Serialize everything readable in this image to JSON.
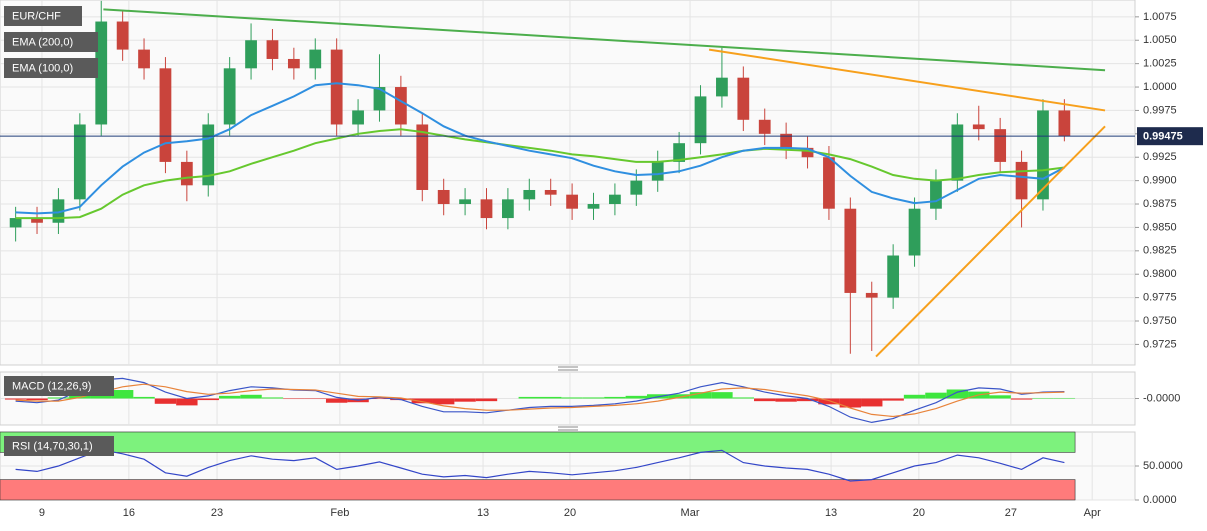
{
  "chart_data": [
    {
      "type": "candlestick",
      "name": "EUR/CHF",
      "up_color": "#2f9e5b",
      "down_color": "#c9443c",
      "open": [
        0.985,
        0.986,
        0.9855,
        0.988,
        0.996,
        1.007,
        1.004,
        1.002,
        0.992,
        0.9895,
        0.996,
        1.002,
        1.005,
        1.003,
        1.002,
        1.004,
        0.996,
        0.9975,
        1.0,
        0.996,
        0.989,
        0.9875,
        0.988,
        0.986,
        0.988,
        0.989,
        0.9885,
        0.987,
        0.9875,
        0.9885,
        0.99,
        0.992,
        0.994,
        0.999,
        1.001,
        0.9965,
        0.995,
        0.9935,
        0.9925,
        0.987,
        0.978,
        0.9775,
        0.982,
        0.987,
        0.99,
        0.996,
        0.9955,
        0.992,
        0.988,
        0.9975
      ],
      "high": [
        0.9872,
        0.9872,
        0.9892,
        0.9972,
        1.0092,
        1.0082,
        1.0052,
        1.0032,
        0.9932,
        0.9972,
        1.0032,
        1.0068,
        1.0062,
        1.0042,
        1.0052,
        1.0052,
        0.9987,
        1.0035,
        1.0012,
        0.9972,
        0.9902,
        0.9892,
        0.9892,
        0.9892,
        0.9902,
        0.9902,
        0.9897,
        0.9887,
        0.9897,
        0.9912,
        0.9932,
        0.9952,
        1.0002,
        1.0042,
        1.0022,
        0.9977,
        0.9962,
        0.9947,
        0.9937,
        0.9882,
        0.9792,
        0.9832,
        0.9882,
        0.9912,
        0.9972,
        0.998,
        0.9967,
        0.9932,
        0.9987,
        0.9987
      ],
      "low": [
        0.9835,
        0.9843,
        0.9843,
        0.9868,
        0.9948,
        1.0028,
        1.0008,
        0.9908,
        0.9878,
        0.9883,
        0.9948,
        1.0008,
        1.0018,
        1.0008,
        1.0008,
        0.9948,
        0.9948,
        0.9963,
        0.9948,
        0.9878,
        0.9863,
        0.9863,
        0.9848,
        0.9848,
        0.9868,
        0.9873,
        0.9858,
        0.9858,
        0.9863,
        0.9873,
        0.9888,
        0.9908,
        0.9928,
        0.9978,
        0.9953,
        0.9938,
        0.9923,
        0.9913,
        0.9858,
        0.9715,
        0.9718,
        0.9763,
        0.9808,
        0.9858,
        0.9888,
        0.9943,
        0.9908,
        0.985,
        0.9868,
        0.9942
      ],
      "close": [
        0.986,
        0.9855,
        0.988,
        0.996,
        1.007,
        1.004,
        1.002,
        0.992,
        0.9895,
        0.996,
        1.002,
        1.005,
        1.003,
        1.002,
        1.004,
        0.996,
        0.9975,
        1.0,
        0.996,
        0.989,
        0.9875,
        0.988,
        0.986,
        0.988,
        0.989,
        0.9885,
        0.987,
        0.9875,
        0.9885,
        0.99,
        0.992,
        0.994,
        0.999,
        1.001,
        0.9965,
        0.995,
        0.9935,
        0.9925,
        0.987,
        0.978,
        0.9775,
        0.982,
        0.987,
        0.99,
        0.996,
        0.9955,
        0.992,
        0.988,
        0.9975,
        0.99475
      ],
      "series": [
        {
          "name": "EMA (200,0)",
          "color": "#66c82e",
          "values": [
            0.986,
            0.986,
            0.986,
            0.9861,
            0.987,
            0.9885,
            0.9895,
            0.99,
            0.9903,
            0.9905,
            0.991,
            0.9918,
            0.9925,
            0.9932,
            0.994,
            0.9945,
            0.995,
            0.9953,
            0.9955,
            0.9952,
            0.9948,
            0.9944,
            0.9941,
            0.9938,
            0.9935,
            0.9932,
            0.9928,
            0.9926,
            0.9923,
            0.992,
            0.992,
            0.9922,
            0.9925,
            0.9928,
            0.9932,
            0.9934,
            0.9933,
            0.9932,
            0.9928,
            0.9923,
            0.9915,
            0.9906,
            0.9902,
            0.99,
            0.9902,
            0.9906,
            0.9909,
            0.991,
            0.9911,
            0.9914
          ]
        },
        {
          "name": "EMA (100,0)",
          "color": "#2f8fe0",
          "values": [
            0.9866,
            0.9865,
            0.9866,
            0.9872,
            0.9895,
            0.9915,
            0.993,
            0.994,
            0.9942,
            0.9945,
            0.9955,
            0.997,
            0.998,
            0.999,
            1.0002,
            1.0004,
            1.0002,
            0.9998,
            0.9985,
            0.9972,
            0.9958,
            0.9948,
            0.9942,
            0.9937,
            0.9932,
            0.9928,
            0.9924,
            0.9916,
            0.991,
            0.9906,
            0.9907,
            0.991,
            0.9916,
            0.9925,
            0.9932,
            0.9935,
            0.9935,
            0.9934,
            0.9925,
            0.9905,
            0.9888,
            0.9881,
            0.9876,
            0.9878,
            0.989,
            0.9902,
            0.9906,
            0.9904,
            0.9902,
            0.9914
          ]
        }
      ],
      "trendlines": [
        {
          "color": "#4cae4c",
          "x": [
            4.1,
            50.9
          ],
          "y": [
            1.0083,
            1.0018
          ]
        },
        {
          "color": "#f7a01c",
          "x": [
            32.4,
            50.9
          ],
          "y": [
            1.004,
            0.9975
          ]
        },
        {
          "color": "#f7a01c",
          "x": [
            40.2,
            50.9
          ],
          "y": [
            0.9712,
            0.9958
          ]
        }
      ],
      "last": {
        "value": 0.99475,
        "label": "0.99475"
      },
      "xlim": [
        -0.73,
        52.3
      ],
      "xticks": [
        {
          "value": 1.23,
          "label": "9"
        },
        {
          "value": 5.29,
          "label": "16"
        },
        {
          "value": 9.41,
          "label": "23"
        },
        {
          "value": 15.15,
          "label": "Feb"
        },
        {
          "value": 21.84,
          "label": "13"
        },
        {
          "value": 25.9,
          "label": "20"
        },
        {
          "value": 31.51,
          "label": "Mar"
        },
        {
          "value": 38.1,
          "label": "13"
        },
        {
          "value": 42.2,
          "label": "20"
        },
        {
          "value": 46.5,
          "label": "27"
        },
        {
          "value": 50.3,
          "label": "Apr"
        }
      ],
      "ylim": [
        0.9703,
        1.0093
      ],
      "yticks": [
        {
          "value": 0.9725,
          "label": "0.9725"
        },
        {
          "value": 0.975,
          "label": "0.9750"
        },
        {
          "value": 0.9775,
          "label": "0.9775"
        },
        {
          "value": 0.98,
          "label": "0.9800"
        },
        {
          "value": 0.9825,
          "label": "0.9825"
        },
        {
          "value": 0.985,
          "label": "0.9850"
        },
        {
          "value": 0.9875,
          "label": "0.9875"
        },
        {
          "value": 0.99,
          "label": "0.9900"
        },
        {
          "value": 0.9925,
          "label": "0.9925"
        },
        {
          "value": 0.995,
          "label": "0.9950"
        },
        {
          "value": 0.9975,
          "label": "0.9975"
        },
        {
          "value": 1.0,
          "label": "1.0000"
        },
        {
          "value": 1.0025,
          "label": "1.0025"
        },
        {
          "value": 1.005,
          "label": "1.0050"
        },
        {
          "value": 1.0075,
          "label": "1.0075"
        }
      ],
      "grid": true
    },
    {
      "type": "macd",
      "title": "MACD (12,26,9)",
      "macd": {
        "color": "#3a55c8",
        "values": [
          -0.0005,
          -0.0008,
          -0.0003,
          0.0015,
          0.0035,
          0.0038,
          0.003,
          0.0012,
          0.0,
          0.0005,
          0.0015,
          0.0022,
          0.002,
          0.0016,
          0.0015,
          0.0002,
          -0.0003,
          0.0002,
          -0.0002,
          -0.0015,
          -0.0025,
          -0.0025,
          -0.0027,
          -0.0022,
          -0.0017,
          -0.0015,
          -0.0015,
          -0.0013,
          -0.001,
          -0.0005,
          0.0003,
          0.001,
          0.0022,
          0.003,
          0.0022,
          0.0012,
          0.0005,
          0.0,
          -0.0015,
          -0.0035,
          -0.0045,
          -0.0038,
          -0.0022,
          -0.0008,
          0.0012,
          0.002,
          0.0018,
          0.0008,
          0.0012,
          0.0013
        ]
      },
      "signal": {
        "color": "#e8833a",
        "values": [
          -0.0003,
          -0.0005,
          -0.0005,
          0.0002,
          0.0012,
          0.0022,
          0.0027,
          0.0022,
          0.0013,
          0.0008,
          0.001,
          0.0015,
          0.0018,
          0.0017,
          0.0016,
          0.001,
          0.0004,
          0.0003,
          0.0001,
          -0.0006,
          -0.0014,
          -0.0019,
          -0.0022,
          -0.0022,
          -0.002,
          -0.0018,
          -0.0017,
          -0.0015,
          -0.0013,
          -0.001,
          -0.0005,
          0.0002,
          0.001,
          0.0018,
          0.002,
          0.0017,
          0.0011,
          0.0005,
          -0.0004,
          -0.0018,
          -0.003,
          -0.0034,
          -0.0029,
          -0.0019,
          -0.0005,
          0.0007,
          0.0012,
          0.001,
          0.0011,
          0.0012
        ]
      },
      "histogram": {
        "up_color": "#3ee63e",
        "down_color": "#e83030",
        "values": [
          -0.0002,
          -0.0003,
          0.0002,
          0.0013,
          0.0023,
          0.0016,
          0.0003,
          -0.001,
          -0.0013,
          -0.0003,
          0.0005,
          0.0007,
          0.0002,
          -0.0001,
          -0.0001,
          -0.0008,
          -0.0007,
          -0.0001,
          -0.0003,
          -0.0009,
          -0.0011,
          -0.0006,
          -0.0005,
          0.0,
          0.0003,
          0.0003,
          0.0002,
          0.0002,
          0.0003,
          0.0005,
          0.0008,
          0.0008,
          0.0012,
          0.0012,
          0.0002,
          -0.0005,
          -0.0006,
          -0.0005,
          -0.0011,
          -0.0017,
          -0.0015,
          -0.0004,
          0.0007,
          0.0011,
          0.0017,
          0.0013,
          0.0006,
          -0.0002,
          0.0001,
          0.0001
        ]
      },
      "ylim": [
        -0.005,
        0.005
      ],
      "yticks": [
        {
          "value": 0,
          "label": "-0.0000"
        }
      ]
    },
    {
      "type": "rsi",
      "title": "RSI (14,70,30,1)",
      "color": "#3346c8",
      "values": [
        45,
        42,
        50,
        62,
        74,
        68,
        60,
        40,
        35,
        48,
        58,
        65,
        60,
        58,
        62,
        45,
        50,
        56,
        47,
        38,
        34,
        36,
        33,
        38,
        42,
        40,
        37,
        40,
        43,
        48,
        55,
        62,
        70,
        73,
        55,
        50,
        47,
        45,
        38,
        28,
        30,
        40,
        50,
        55,
        66,
        62,
        54,
        45,
        62,
        55
      ],
      "zones": {
        "upper": 70,
        "lower": 30,
        "upper_color": "#7df27d",
        "lower_color": "#ff7b7b"
      },
      "ylim": [
        0,
        100
      ],
      "yticks": [
        {
          "value": 50,
          "label": "50.0000"
        },
        {
          "value": 0,
          "label": "0.0000"
        }
      ]
    }
  ]
}
